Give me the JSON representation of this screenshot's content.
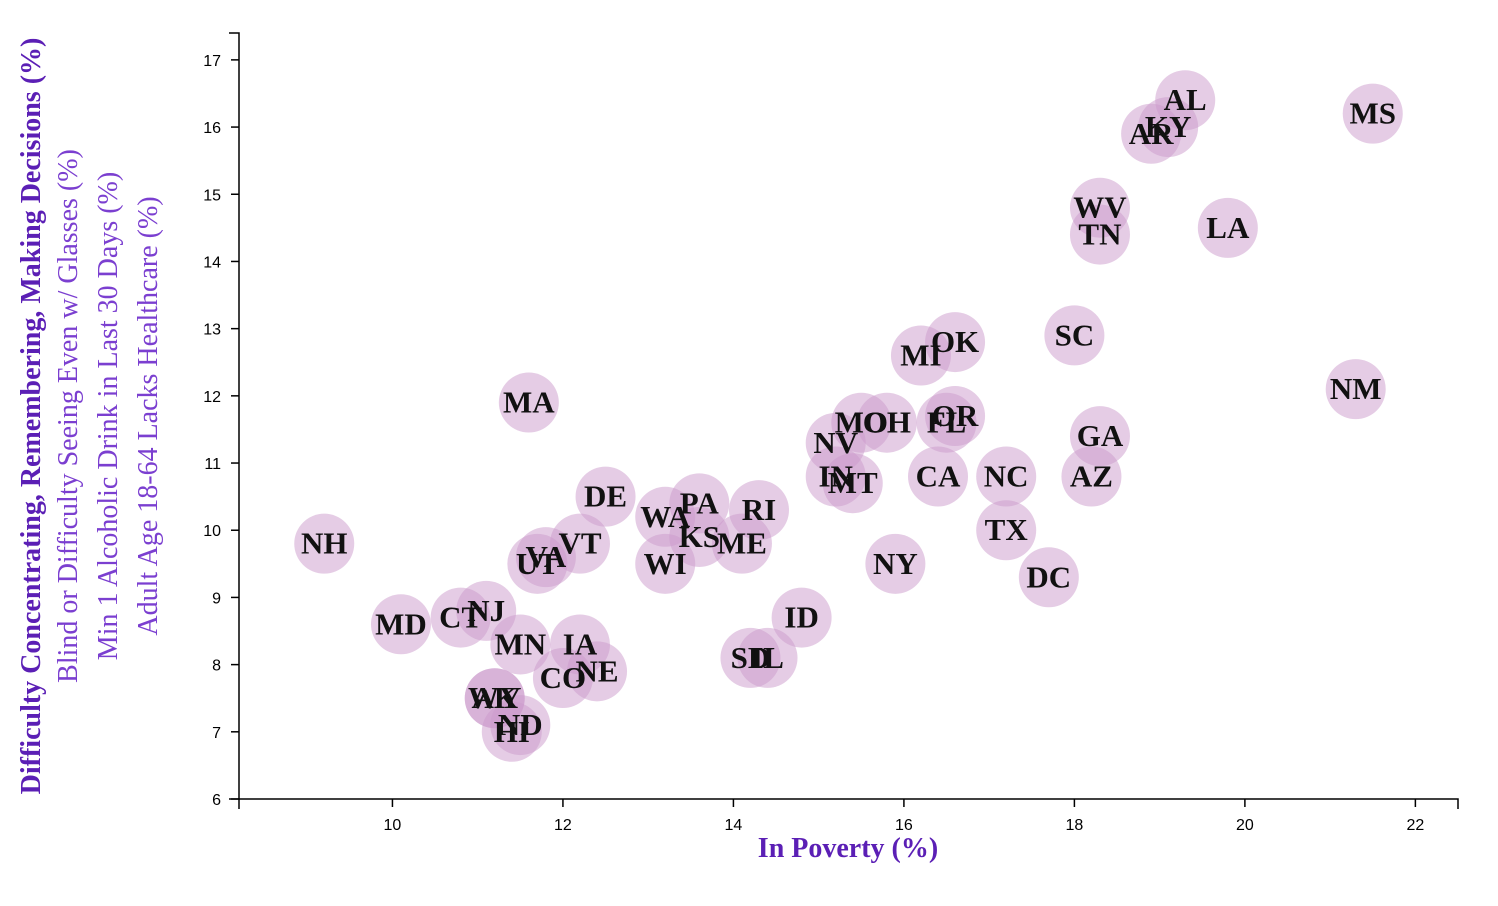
{
  "chart_data": {
    "type": "scatter",
    "xlabel": "In Poverty (%)",
    "ylabels": [
      "Difficulty Concentrating, Remembering, Making Decisions (%)",
      "Blind or Difficulty Seeing Even w/ Glasses (%)",
      "Min 1 Alcoholic Drink in Last 30 Days (%)",
      "Adult Age 18-64 Lacks Healthcare (%)"
    ],
    "active_ylabel_index": 0,
    "xlim": [
      8.2,
      22.5
    ],
    "ylim": [
      6,
      17.4
    ],
    "x_ticks": [
      10,
      12,
      14,
      16,
      18,
      20,
      22
    ],
    "y_ticks": [
      6,
      7,
      8,
      9,
      10,
      11,
      12,
      13,
      14,
      15,
      16,
      17
    ],
    "marker_color": "#cc99cc",
    "axis_title_color": "#5b1fb5",
    "points": [
      {
        "abbr": "AL",
        "x": 19.3,
        "y": 16.4
      },
      {
        "abbr": "KY",
        "x": 19.1,
        "y": 16.0
      },
      {
        "abbr": "AR",
        "x": 18.9,
        "y": 15.9
      },
      {
        "abbr": "MS",
        "x": 21.5,
        "y": 16.2
      },
      {
        "abbr": "WV",
        "x": 18.3,
        "y": 14.8
      },
      {
        "abbr": "TN",
        "x": 18.3,
        "y": 14.4
      },
      {
        "abbr": "LA",
        "x": 19.8,
        "y": 14.5
      },
      {
        "abbr": "SC",
        "x": 18.0,
        "y": 12.9
      },
      {
        "abbr": "OK",
        "x": 16.6,
        "y": 12.8
      },
      {
        "abbr": "MI",
        "x": 16.2,
        "y": 12.6
      },
      {
        "abbr": "NM",
        "x": 21.3,
        "y": 12.1
      },
      {
        "abbr": "MA",
        "x": 11.6,
        "y": 11.9
      },
      {
        "abbr": "MO",
        "x": 15.5,
        "y": 11.6
      },
      {
        "abbr": "OH",
        "x": 15.8,
        "y": 11.6
      },
      {
        "abbr": "FL",
        "x": 16.5,
        "y": 11.6
      },
      {
        "abbr": "OR",
        "x": 16.6,
        "y": 11.7
      },
      {
        "abbr": "GA",
        "x": 18.3,
        "y": 11.4
      },
      {
        "abbr": "NV",
        "x": 15.2,
        "y": 11.3
      },
      {
        "abbr": "IN",
        "x": 15.2,
        "y": 10.8
      },
      {
        "abbr": "MT",
        "x": 15.4,
        "y": 10.7
      },
      {
        "abbr": "CA",
        "x": 16.4,
        "y": 10.8
      },
      {
        "abbr": "NC",
        "x": 17.2,
        "y": 10.8
      },
      {
        "abbr": "AZ",
        "x": 18.2,
        "y": 10.8
      },
      {
        "abbr": "TX",
        "x": 17.2,
        "y": 10.0
      },
      {
        "abbr": "DC",
        "x": 17.7,
        "y": 9.3
      },
      {
        "abbr": "NY",
        "x": 15.9,
        "y": 9.5
      },
      {
        "abbr": "DE",
        "x": 12.5,
        "y": 10.5
      },
      {
        "abbr": "PA",
        "x": 13.6,
        "y": 10.4
      },
      {
        "abbr": "WA",
        "x": 13.2,
        "y": 10.2
      },
      {
        "abbr": "RI",
        "x": 14.3,
        "y": 10.3
      },
      {
        "abbr": "KS",
        "x": 13.6,
        "y": 9.9
      },
      {
        "abbr": "ME",
        "x": 14.1,
        "y": 9.8
      },
      {
        "abbr": "WI",
        "x": 13.2,
        "y": 9.5
      },
      {
        "abbr": "VT",
        "x": 12.2,
        "y": 9.8
      },
      {
        "abbr": "VA",
        "x": 11.8,
        "y": 9.6
      },
      {
        "abbr": "UT",
        "x": 11.7,
        "y": 9.5
      },
      {
        "abbr": "NH",
        "x": 9.2,
        "y": 9.8
      },
      {
        "abbr": "ID",
        "x": 14.8,
        "y": 8.7
      },
      {
        "abbr": "SD",
        "x": 14.2,
        "y": 8.1
      },
      {
        "abbr": "IL",
        "x": 14.4,
        "y": 8.1
      },
      {
        "abbr": "MD",
        "x": 10.1,
        "y": 8.6
      },
      {
        "abbr": "CT",
        "x": 10.8,
        "y": 8.7
      },
      {
        "abbr": "NJ",
        "x": 11.1,
        "y": 8.8
      },
      {
        "abbr": "MN",
        "x": 11.5,
        "y": 8.3
      },
      {
        "abbr": "IA",
        "x": 12.2,
        "y": 8.3
      },
      {
        "abbr": "NE",
        "x": 12.4,
        "y": 7.9
      },
      {
        "abbr": "CO",
        "x": 12.0,
        "y": 7.8
      },
      {
        "abbr": "WY",
        "x": 11.2,
        "y": 7.5
      },
      {
        "abbr": "AK",
        "x": 11.2,
        "y": 7.5
      },
      {
        "abbr": "ND",
        "x": 11.5,
        "y": 7.1
      },
      {
        "abbr": "HI",
        "x": 11.4,
        "y": 7.0
      }
    ]
  }
}
